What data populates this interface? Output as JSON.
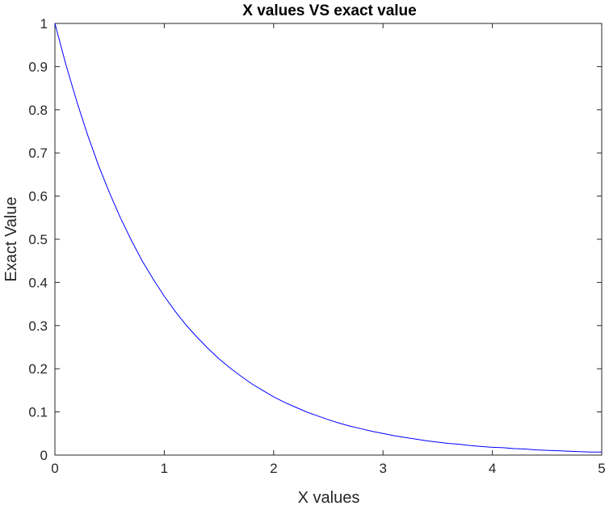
{
  "chart_data": {
    "type": "line",
    "title": "X values VS exact value",
    "xlabel": "X values",
    "ylabel": "Exact Value",
    "xlim": [
      0,
      5
    ],
    "ylim": [
      0,
      1
    ],
    "grid": false,
    "x_ticks": [
      {
        "value": 0,
        "label": "0"
      },
      {
        "value": 1,
        "label": "1"
      },
      {
        "value": 2,
        "label": "2"
      },
      {
        "value": 3,
        "label": "3"
      },
      {
        "value": 4,
        "label": "4"
      },
      {
        "value": 5,
        "label": "5"
      }
    ],
    "y_ticks": [
      {
        "value": 0,
        "label": "0"
      },
      {
        "value": 0.1,
        "label": "0.1"
      },
      {
        "value": 0.2,
        "label": "0.2"
      },
      {
        "value": 0.3,
        "label": "0.3"
      },
      {
        "value": 0.4,
        "label": "0.4"
      },
      {
        "value": 0.5,
        "label": "0.5"
      },
      {
        "value": 0.6,
        "label": "0.6"
      },
      {
        "value": 0.7,
        "label": "0.7"
      },
      {
        "value": 0.8,
        "label": "0.8"
      },
      {
        "value": 0.9,
        "label": "0.9"
      },
      {
        "value": 1,
        "label": "1"
      }
    ],
    "series": [
      {
        "color": "#0000ff",
        "x": [
          0,
          0.1,
          0.2,
          0.3,
          0.4,
          0.5,
          0.6,
          0.7,
          0.8,
          0.9,
          1.0,
          1.1,
          1.2,
          1.3,
          1.4,
          1.5,
          1.6,
          1.7,
          1.8,
          1.9,
          2.0,
          2.1,
          2.2,
          2.3,
          2.4,
          2.5,
          2.6,
          2.7,
          2.8,
          2.9,
          3.0,
          3.1,
          3.2,
          3.3,
          3.4,
          3.5,
          3.6,
          3.7,
          3.8,
          3.9,
          4.0,
          4.1,
          4.2,
          4.3,
          4.4,
          4.5,
          4.6,
          4.7,
          4.8,
          4.9,
          5.0
        ],
        "y": [
          1.0,
          0.905,
          0.819,
          0.741,
          0.67,
          0.607,
          0.549,
          0.497,
          0.449,
          0.407,
          0.368,
          0.333,
          0.301,
          0.273,
          0.247,
          0.223,
          0.202,
          0.183,
          0.165,
          0.15,
          0.135,
          0.122,
          0.111,
          0.1,
          0.091,
          0.082,
          0.074,
          0.067,
          0.061,
          0.055,
          0.05,
          0.045,
          0.041,
          0.037,
          0.033,
          0.03,
          0.027,
          0.025,
          0.022,
          0.02,
          0.018,
          0.017,
          0.015,
          0.014,
          0.012,
          0.011,
          0.01,
          0.009,
          0.008,
          0.007,
          0.007
        ]
      }
    ]
  }
}
